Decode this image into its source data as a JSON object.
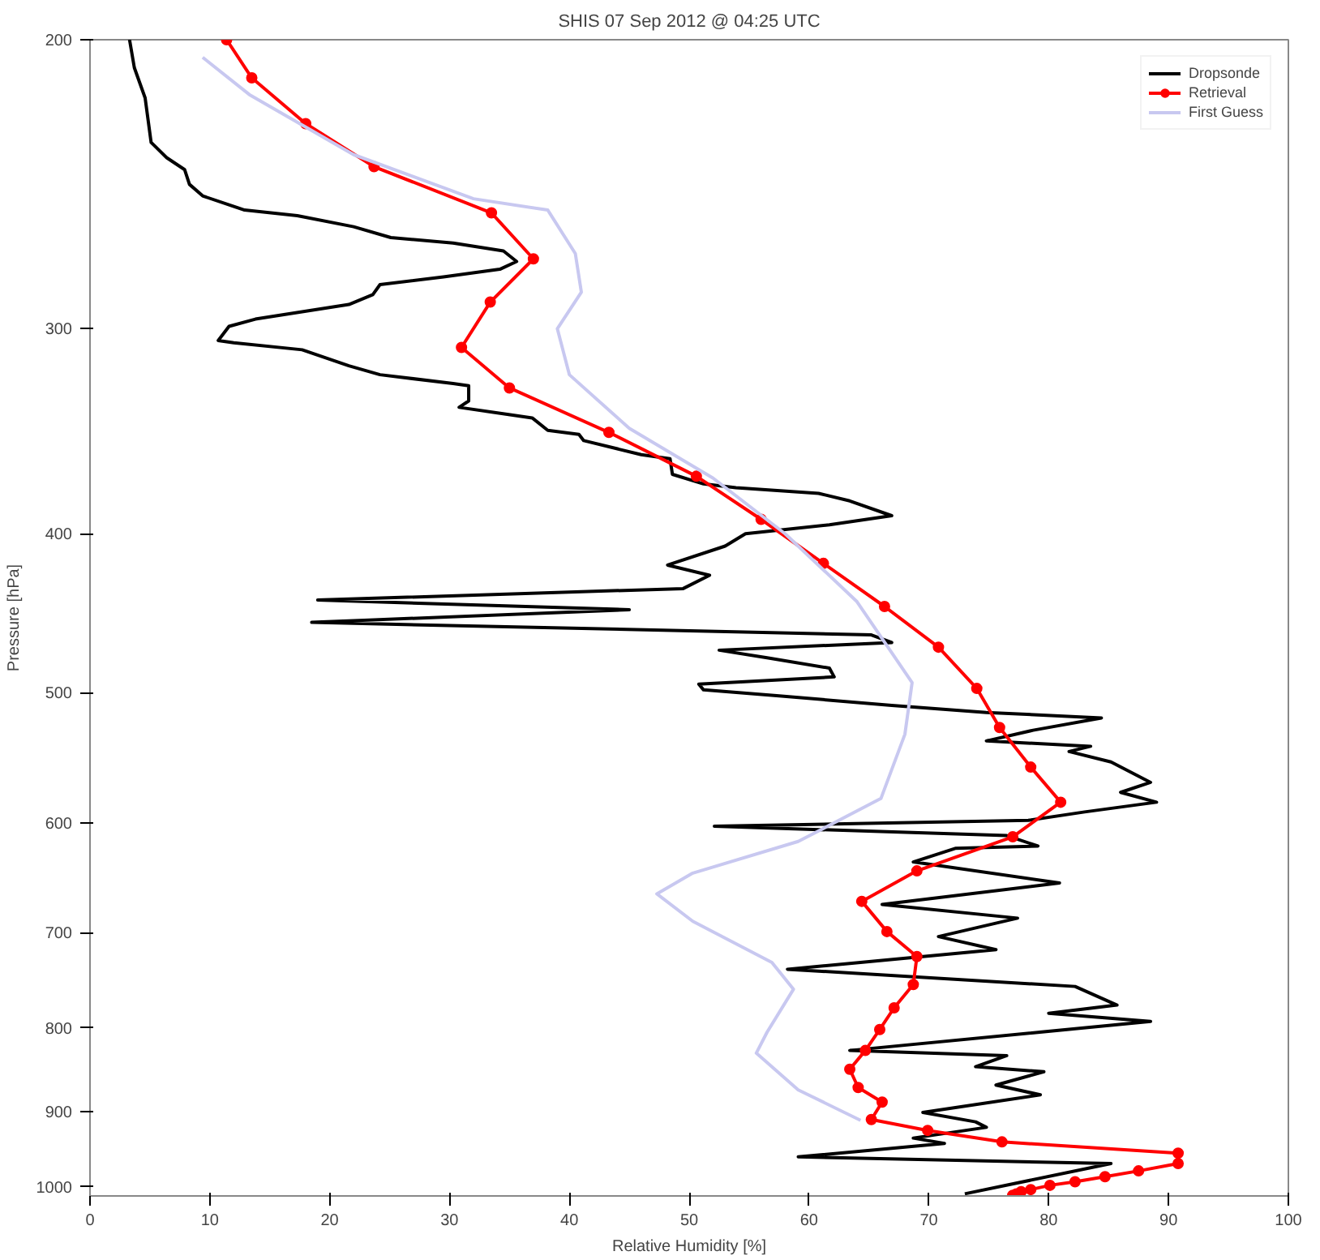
{
  "chart_data": {
    "type": "line",
    "title": "SHIS 07 Sep 2012 @ 04:25 UTC",
    "xlabel": "Relative Humidity [%]",
    "ylabel": "Pressure [hPa]",
    "xlim": [
      0,
      100
    ],
    "xticks": [
      0,
      10,
      20,
      30,
      40,
      50,
      60,
      70,
      80,
      90,
      100
    ],
    "ylim": [
      1013,
      200
    ],
    "yticks": [
      200,
      300,
      400,
      500,
      600,
      700,
      800,
      900,
      1000
    ],
    "log": "y",
    "grid": false,
    "legend": "top right",
    "series": [
      {
        "name": "Dropsonde",
        "color": "#000000",
        "marker": "none",
        "x": [
          3.3,
          3.7,
          4.6,
          5.1,
          6.4,
          7.9,
          8.3,
          9.4,
          12.9,
          17.3,
          22.0,
          25.1,
          30.3,
          34.5,
          35.6,
          34.2,
          29.5,
          24.2,
          23.6,
          21.6,
          13.8,
          11.6,
          10.7,
          12.0,
          17.7,
          21.6,
          24.2,
          30.3,
          31.6,
          31.6,
          30.8,
          36.9,
          38.2,
          40.8,
          41.2,
          46.0,
          48.4,
          48.6,
          51.2,
          53.9,
          60.8,
          63.4,
          66.9,
          61.7,
          54.7,
          53.0,
          48.2,
          51.7,
          49.5,
          19.0,
          45.0,
          18.5,
          65.2,
          66.9,
          52.5,
          56.5,
          61.7,
          62.1,
          50.8,
          51.2,
          57.3,
          66.9,
          74.8,
          84.4,
          78.7,
          74.8,
          83.5,
          81.7,
          85.2,
          88.5,
          86.0,
          89.0,
          83.0,
          78.3,
          52.1,
          76.5,
          79.1,
          72.2,
          68.7,
          80.9,
          66.1,
          77.4,
          70.8,
          75.6,
          63.4,
          58.2,
          82.2,
          85.7,
          80.0,
          88.5,
          63.4,
          76.5,
          73.9,
          79.6,
          75.6,
          79.3,
          69.5,
          73.9,
          74.8,
          68.7,
          71.3,
          59.1,
          85.2,
          73.0
        ],
        "values": [
          200,
          208,
          217,
          231,
          236,
          240,
          245,
          249,
          254,
          256,
          260,
          264,
          266,
          269,
          273,
          276,
          279,
          282,
          286,
          290,
          296,
          299,
          305,
          306,
          309,
          316,
          320,
          324,
          325,
          332,
          335,
          340,
          346,
          348,
          351,
          358,
          360,
          368,
          373,
          375,
          378,
          382,
          390,
          395,
          400,
          407,
          418,
          424,
          432,
          439,
          445,
          453,
          461,
          466,
          471,
          476,
          483,
          489,
          494,
          498,
          502,
          509,
          514,
          518,
          527,
          535,
          539,
          543,
          551,
          567,
          575,
          583,
          591,
          598,
          603,
          611,
          620,
          622,
          634,
          653,
          673,
          686,
          704,
          717,
          731,
          737,
          755,
          775,
          784,
          793,
          826,
          832,
          845,
          851,
          867,
          879,
          901,
          913,
          920,
          934,
          941,
          959,
          968,
          1010
        ]
      },
      {
        "name": "Retrieval",
        "color": "#ff0000",
        "marker": "circle",
        "x": [
          11.4,
          13.5,
          18.0,
          23.7,
          33.5,
          37.0,
          33.4,
          31.0,
          35.0,
          43.3,
          50.6,
          56.0,
          61.2,
          66.3,
          70.8,
          74.0,
          75.9,
          78.5,
          81.0,
          77.0,
          69.0,
          64.4,
          66.5,
          69.0,
          68.7,
          67.1,
          65.9,
          64.7,
          63.4,
          64.1,
          66.1,
          65.2,
          69.9,
          76.1,
          90.8,
          90.8,
          87.5,
          84.7,
          82.2,
          80.1,
          78.5,
          77.7,
          77.3,
          77.0
        ],
        "values": [
          200,
          211,
          225,
          239,
          255,
          272,
          289,
          308,
          326,
          347,
          369,
          392,
          417,
          443,
          469,
          497,
          525,
          555,
          583,
          612,
          642,
          670,
          699,
          724,
          753,
          778,
          802,
          826,
          848,
          870,
          888,
          910,
          924,
          939,
          954,
          968,
          978,
          986,
          993,
          998,
          1004,
          1007,
          1010,
          1012
        ]
      },
      {
        "name": "First Guess",
        "color": "#c8c8f0",
        "marker": "none",
        "x": [
          9.4,
          13.3,
          22.0,
          32.0,
          38.2,
          40.5,
          41.0,
          39.0,
          40.0,
          45.0,
          52.0,
          58.0,
          64.0,
          68.6,
          68.0,
          66.0,
          59.1,
          50.3,
          47.3,
          50.3,
          56.9,
          58.7,
          56.5,
          55.6,
          59.1,
          64.3
        ],
        "values": [
          205,
          216,
          235,
          250,
          254,
          270,
          285,
          300,
          320,
          345,
          370,
          400,
          440,
          493,
          530,
          580,
          616,
          644,
          663,
          689,
          730,
          758,
          805,
          829,
          873,
          911
        ]
      }
    ]
  }
}
